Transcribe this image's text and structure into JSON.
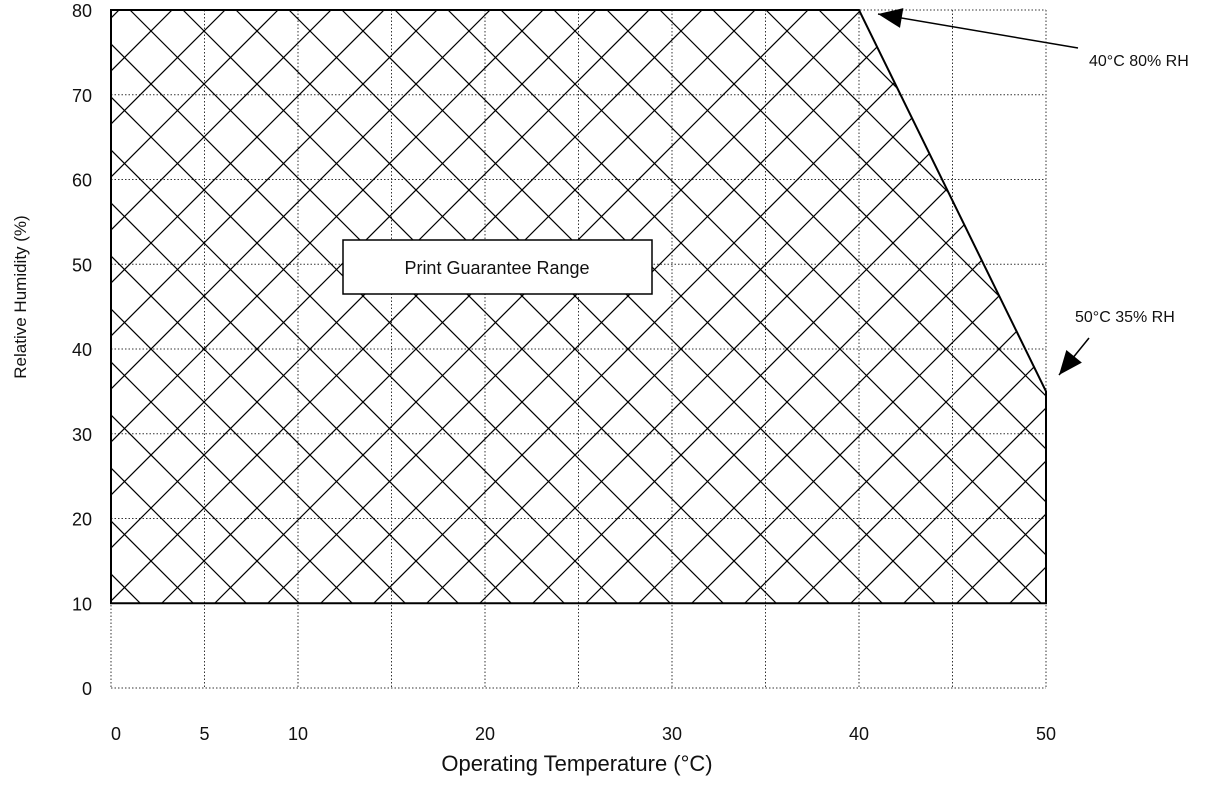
{
  "chart_data": {
    "type": "area",
    "title": "",
    "xlabel": "Operating Temperature (°C)",
    "ylabel": "Relative Humidity  (%)",
    "xlim": [
      0,
      50
    ],
    "ylim": [
      0,
      80
    ],
    "x_ticks": [
      0,
      5,
      10,
      20,
      30,
      40,
      50
    ],
    "x_tick_labels": [
      "0",
      "5",
      "10",
      "20",
      "30",
      "40",
      "50"
    ],
    "x_grid": [
      0,
      5,
      10,
      15,
      20,
      25,
      30,
      35,
      40,
      45,
      50
    ],
    "y_ticks": [
      0,
      10,
      20,
      30,
      40,
      50,
      60,
      70,
      80
    ],
    "y_tick_labels": [
      "0",
      "10",
      "20",
      "30",
      "40",
      "50",
      "60",
      "70",
      "80"
    ],
    "grid": true,
    "grid_style": "dotted",
    "region": {
      "label": "Print Guarantee Range",
      "fill_pattern": "crosshatch",
      "points": [
        {
          "x": 0,
          "y": 10
        },
        {
          "x": 0,
          "y": 80
        },
        {
          "x": 40,
          "y": 80
        },
        {
          "x": 50,
          "y": 35
        },
        {
          "x": 50,
          "y": 10
        }
      ]
    },
    "annotations": [
      {
        "text": "40°C 80% RH",
        "x": 40,
        "y": 80
      },
      {
        "text": "50°C 35% RH",
        "x": 50,
        "y": 35
      }
    ]
  },
  "colors": {
    "line": "#000000",
    "grid": "#333333",
    "background": "#ffffff"
  }
}
